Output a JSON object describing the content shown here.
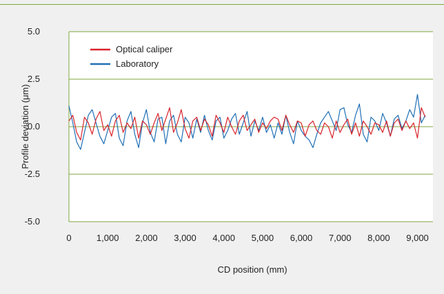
{
  "colors": {
    "background": "#f0f0f0",
    "plot_background": "#ffffff",
    "grid": "#7fa640",
    "optical": "#d8232a",
    "laboratory": "#1f6fb5"
  },
  "chart_data": {
    "type": "line",
    "title": "",
    "xlabel": "CD position (mm)",
    "ylabel": "Profile deviation (μm)",
    "xlim": [
      0,
      9400
    ],
    "ylim": [
      -5.0,
      5.0
    ],
    "x_ticks": [
      0,
      1000,
      2000,
      3000,
      4000,
      5000,
      6000,
      7000,
      8000,
      9000
    ],
    "x_tick_labels": [
      "0",
      "1,000",
      "2,000",
      "3,000",
      "4,000",
      "5,000",
      "6,000",
      "7,000",
      "8,000",
      "9,000"
    ],
    "y_ticks": [
      5.0,
      2.5,
      0.0,
      -2.5,
      -5.0
    ],
    "y_tick_labels": [
      "5.0",
      "2.5",
      "0.0",
      "-2.5",
      "-5.0"
    ],
    "grid": "horizontal",
    "legend_position": "top-left",
    "series": [
      {
        "name": "Optical caliper",
        "color": "#d8232a",
        "x": [
          0,
          100,
          200,
          300,
          400,
          500,
          600,
          700,
          800,
          900,
          1000,
          1100,
          1200,
          1300,
          1400,
          1500,
          1600,
          1700,
          1800,
          1900,
          2000,
          2100,
          2200,
          2300,
          2400,
          2500,
          2600,
          2700,
          2800,
          2900,
          3000,
          3100,
          3200,
          3300,
          3400,
          3500,
          3600,
          3700,
          3800,
          3900,
          4000,
          4100,
          4200,
          4300,
          4400,
          4500,
          4600,
          4700,
          4800,
          4900,
          5000,
          5100,
          5200,
          5300,
          5400,
          5500,
          5600,
          5700,
          5800,
          5900,
          6000,
          6100,
          6200,
          6300,
          6400,
          6500,
          6600,
          6700,
          6800,
          6900,
          7000,
          7100,
          7200,
          7300,
          7400,
          7500,
          7600,
          7700,
          7800,
          7900,
          8000,
          8100,
          8200,
          8300,
          8400,
          8500,
          8600,
          8700,
          8800,
          8900,
          9000,
          9100,
          9200
        ],
        "y": [
          0.3,
          0.6,
          -0.3,
          -0.7,
          0.5,
          0.2,
          -0.4,
          0.4,
          0.8,
          -0.2,
          0.1,
          -0.5,
          0.3,
          0.6,
          -0.3,
          0.2,
          -0.1,
          0.5,
          -0.6,
          0.3,
          0.1,
          -0.4,
          0.2,
          0.7,
          -0.2,
          0.4,
          1.0,
          -0.3,
          0.2,
          0.9,
          -0.1,
          -0.6,
          0.3,
          0.5,
          -0.2,
          0.4,
          0.1,
          -0.5,
          0.6,
          0.2,
          -0.3,
          0.5,
          0.0,
          -0.4,
          0.3,
          0.6,
          -0.2,
          0.1,
          0.4,
          -0.3,
          0.2,
          -0.1,
          0.3,
          0.5,
          0.4,
          -0.2,
          0.6,
          0.1,
          -0.3,
          0.3,
          0.2,
          -0.5,
          0.1,
          0.3,
          -0.2,
          -0.4,
          0.2,
          0.0,
          -0.6,
          0.3,
          -0.3,
          0.1,
          0.4,
          -0.4,
          0.2,
          -0.5,
          0.3,
          0.0,
          -0.4,
          0.2,
          0.1,
          -0.3,
          0.3,
          -0.5,
          0.2,
          0.4,
          -0.2,
          0.3,
          -0.1,
          0.2,
          -0.6,
          1.0,
          0.5
        ]
      },
      {
        "name": "Laboratory",
        "color": "#1f6fb5",
        "x": [
          0,
          100,
          200,
          300,
          400,
          500,
          600,
          700,
          800,
          900,
          1000,
          1100,
          1200,
          1300,
          1400,
          1500,
          1600,
          1700,
          1800,
          1900,
          2000,
          2100,
          2200,
          2300,
          2400,
          2500,
          2600,
          2700,
          2800,
          2900,
          3000,
          3100,
          3200,
          3300,
          3400,
          3500,
          3600,
          3700,
          3800,
          3900,
          4000,
          4100,
          4200,
          4300,
          4400,
          4500,
          4600,
          4700,
          4800,
          4900,
          5000,
          5100,
          5200,
          5300,
          5400,
          5500,
          5600,
          5700,
          5800,
          5900,
          6000,
          6100,
          6200,
          6300,
          6400,
          6500,
          6600,
          6700,
          6800,
          6900,
          7000,
          7100,
          7200,
          7300,
          7400,
          7500,
          7600,
          7700,
          7800,
          7900,
          8000,
          8100,
          8200,
          8300,
          8400,
          8500,
          8600,
          8700,
          8800,
          8900,
          9000,
          9100,
          9200
        ],
        "y": [
          1.1,
          0.2,
          -0.8,
          -1.2,
          -0.3,
          0.6,
          0.9,
          0.2,
          -0.5,
          -0.9,
          -0.2,
          0.5,
          0.7,
          -0.6,
          -1.0,
          0.3,
          0.8,
          -0.4,
          -1.1,
          0.2,
          0.9,
          -0.3,
          -0.8,
          0.4,
          0.5,
          -0.9,
          0.3,
          0.6,
          -0.4,
          -0.8,
          0.5,
          0.2,
          -0.6,
          0.4,
          -0.3,
          0.6,
          -0.2,
          -0.7,
          0.3,
          0.5,
          -0.6,
          -0.2,
          0.4,
          0.7,
          -0.4,
          0.2,
          0.8,
          -0.5,
          0.3,
          -0.2,
          0.5,
          -0.3,
          0.1,
          -0.6,
          0.2,
          -0.4,
          0.6,
          -0.3,
          -0.9,
          0.3,
          -0.2,
          -0.5,
          -0.7,
          -1.1,
          -0.4,
          0.2,
          0.5,
          0.8,
          0.3,
          -0.2,
          0.9,
          1.0,
          0.1,
          -0.3,
          0.6,
          1.2,
          -0.4,
          -0.8,
          0.5,
          0.3,
          -0.2,
          0.7,
          0.2,
          -0.5,
          0.4,
          0.6,
          -0.1,
          0.3,
          0.9,
          0.5,
          1.7,
          0.2,
          0.6
        ]
      }
    ]
  }
}
